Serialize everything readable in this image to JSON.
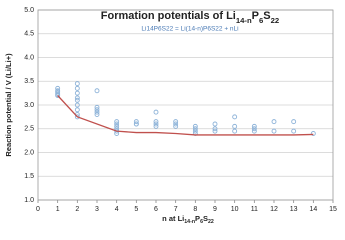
{
  "chart_data": {
    "type": "scatter",
    "title": "Formation potentials of Li14-nP6S22",
    "subtitle": "Li14P6S22 = Li(14-n)P6S22 + nLi",
    "x_label": "n at Li14-nP6S22",
    "y_label": "Reaction potential / V (Li/Li+)",
    "xlim": [
      0,
      15
    ],
    "xticks": [
      0,
      1,
      2,
      3,
      4,
      5,
      6,
      7,
      8,
      9,
      10,
      11,
      12,
      13,
      14,
      15
    ],
    "ylim": [
      1.0,
      5.0
    ],
    "yticks": [
      {
        "value": 1.0,
        "label": "1.0"
      },
      1.5,
      {
        "value": 2.0,
        "label": "2.0"
      },
      2.5,
      {
        "value": 3.0,
        "label": "3.0"
      },
      3.5,
      {
        "value": 4.0,
        "label": "4.0"
      },
      4.5,
      {
        "value": 5.0,
        "label": "5.0"
      }
    ],
    "grid": true,
    "series": [
      {
        "mode": "markers",
        "color": "#8fb4d9",
        "x": [
          1,
          1,
          1,
          1,
          1,
          1,
          2,
          2,
          2,
          2,
          2,
          2,
          2,
          2,
          2,
          3,
          3,
          3,
          3,
          3,
          4,
          4,
          4,
          4,
          4,
          4,
          5,
          5,
          5,
          6,
          6,
          6,
          6,
          7,
          7,
          7,
          8,
          8,
          8,
          8,
          9,
          9,
          9,
          10,
          10,
          10,
          11,
          11,
          11,
          12,
          12,
          13,
          13,
          14
        ],
        "values": [
          3.35,
          3.3,
          3.28,
          3.25,
          3.22,
          3.2,
          3.45,
          3.35,
          3.25,
          3.15,
          3.1,
          3.0,
          2.9,
          2.8,
          2.75,
          3.3,
          2.95,
          2.9,
          2.85,
          2.8,
          2.65,
          2.6,
          2.55,
          2.5,
          2.45,
          2.4,
          2.65,
          2.6,
          2.6,
          2.85,
          2.65,
          2.6,
          2.55,
          2.65,
          2.6,
          2.55,
          2.55,
          2.5,
          2.45,
          2.4,
          2.6,
          2.5,
          2.45,
          2.75,
          2.55,
          2.45,
          2.55,
          2.5,
          2.45,
          2.65,
          2.45,
          2.65,
          2.45,
          2.4
        ]
      },
      {
        "mode": "line",
        "color": "#c0504d",
        "x": [
          1,
          2,
          4,
          5,
          6,
          7,
          8,
          9,
          10,
          11,
          12,
          13,
          14
        ],
        "values": [
          3.2,
          2.75,
          2.45,
          2.42,
          2.42,
          2.4,
          2.37,
          2.37,
          2.37,
          2.37,
          2.37,
          2.37,
          2.38
        ]
      }
    ]
  }
}
